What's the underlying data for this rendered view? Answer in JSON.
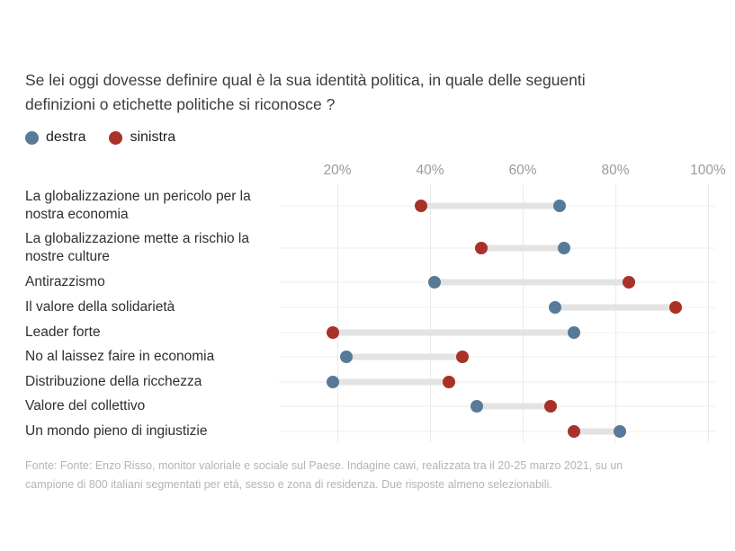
{
  "header": {
    "lines": [
      "Se lei oggi dovesse definire qual è la sua identità politica, in quale delle seguenti",
      "definizioni o etichette politiche si riconosce ?"
    ]
  },
  "legend": {
    "items": [
      {
        "label": "destra",
        "color": "#587a96"
      },
      {
        "label": "sinistra",
        "color": "#a83228"
      }
    ]
  },
  "chart_data": {
    "type": "dumbbell",
    "orientation": "horizontal",
    "title": "Se lei oggi dovesse definire qual è la sua identità politica, in quale delle seguenti definizioni o etichette politiche si riconosce ?",
    "categories": [
      "La globalizzazione un pericolo per la nostra economia",
      "La globalizzazione mette a rischio la nostre culture",
      "Antirazzismo",
      "Il valore della solidarietà",
      "Leader forte",
      "No al laissez faire in economia",
      "Distribuzione della ricchezza",
      "Valore del collettivo",
      "Un mondo pieno di ingiustizie"
    ],
    "series": [
      {
        "name": "destra",
        "color": "#587a96",
        "values": [
          68,
          69,
          41,
          67,
          71,
          22,
          19,
          50,
          81
        ]
      },
      {
        "name": "sinistra",
        "color": "#a83228",
        "values": [
          38,
          51,
          83,
          93,
          19,
          47,
          44,
          66,
          71
        ]
      }
    ],
    "x_ticks": [
      20,
      40,
      60,
      80,
      100
    ],
    "x_tick_suffix": "%",
    "xlim": [
      0,
      101.5
    ],
    "grid": "vertical",
    "legend_position": "top-left",
    "gridline_color": "#eaeaea",
    "rowline_color": "#ececec",
    "connector_color": "#e3e3e3",
    "source": "Fonte: Fonte: Enzo Risso, monitor valoriale e sociale sul Paese. Indagine cawi, realizzata tra il 20-25 marzo 2021, su un campione di 800 italiani segmentati per età, sesso e zona di residenza. Due risposte almeno selezionabili."
  },
  "footer": {
    "lines": [
      "Fonte: Fonte: Enzo Risso, monitor valoriale e sociale sul Paese. Indagine cawi, realizzata tra il 20-25 marzo 2021, su un",
      "campione di 800 italiani segmentati per età, sesso e zona di residenza. Due risposte almeno selezionabili."
    ]
  }
}
